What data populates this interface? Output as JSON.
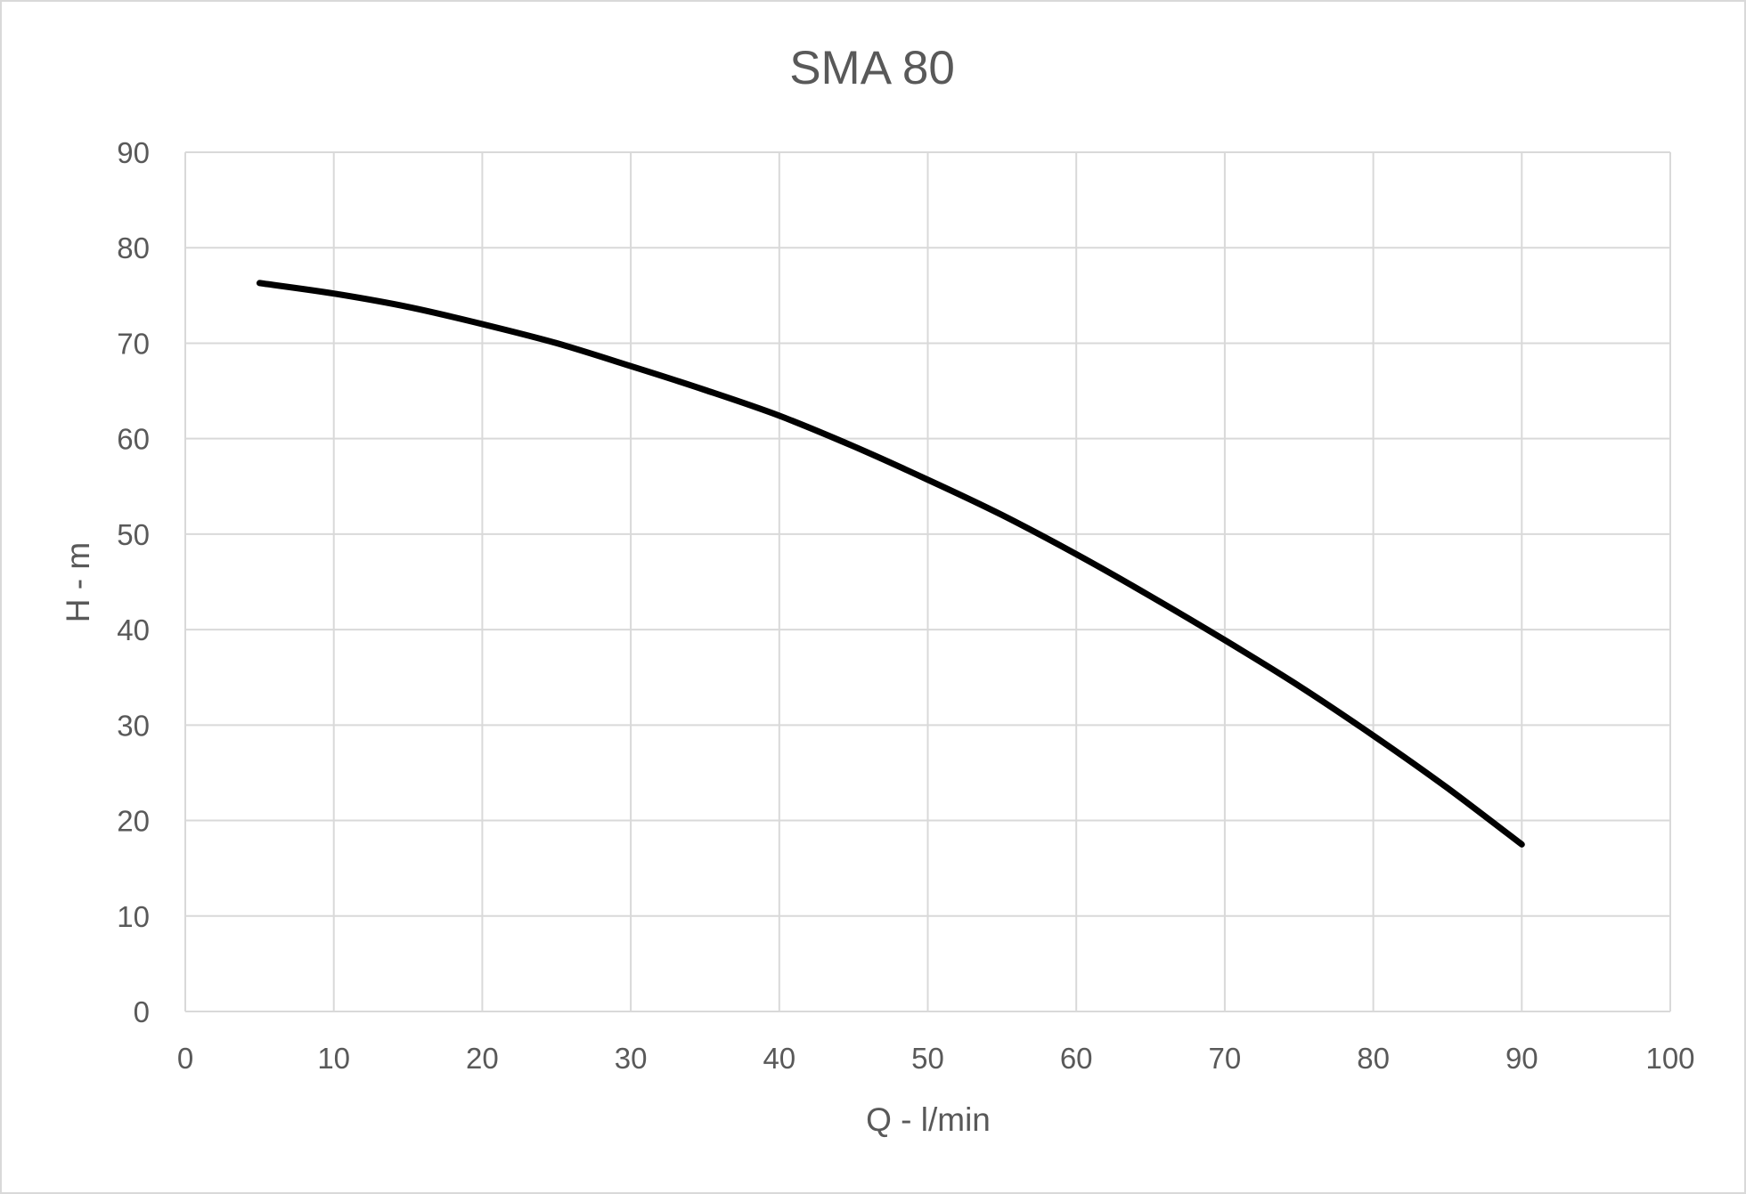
{
  "chart_data": {
    "type": "line",
    "title": "SMA 80",
    "xlabel": "Q - l/min",
    "ylabel": "H - m",
    "xlim": [
      0,
      100
    ],
    "ylim": [
      0,
      90
    ],
    "xticks": [
      0,
      10,
      20,
      30,
      40,
      50,
      60,
      70,
      80,
      90,
      100
    ],
    "yticks": [
      0,
      10,
      20,
      30,
      40,
      50,
      60,
      70,
      80,
      90
    ],
    "grid": true,
    "legend": "none",
    "line_color": "#000000",
    "grid_color": "#d9d9d9",
    "series": [
      {
        "x": [
          5,
          10,
          15,
          20,
          25,
          30,
          35,
          40,
          45,
          50,
          55,
          60,
          65,
          70,
          75,
          80,
          85,
          90
        ],
        "y": [
          76.3,
          75.2,
          73.8,
          72.0,
          70.0,
          67.6,
          65.1,
          62.4,
          59.2,
          55.7,
          52.0,
          47.9,
          43.5,
          38.9,
          34.1,
          28.9,
          23.4,
          17.5
        ]
      }
    ]
  }
}
